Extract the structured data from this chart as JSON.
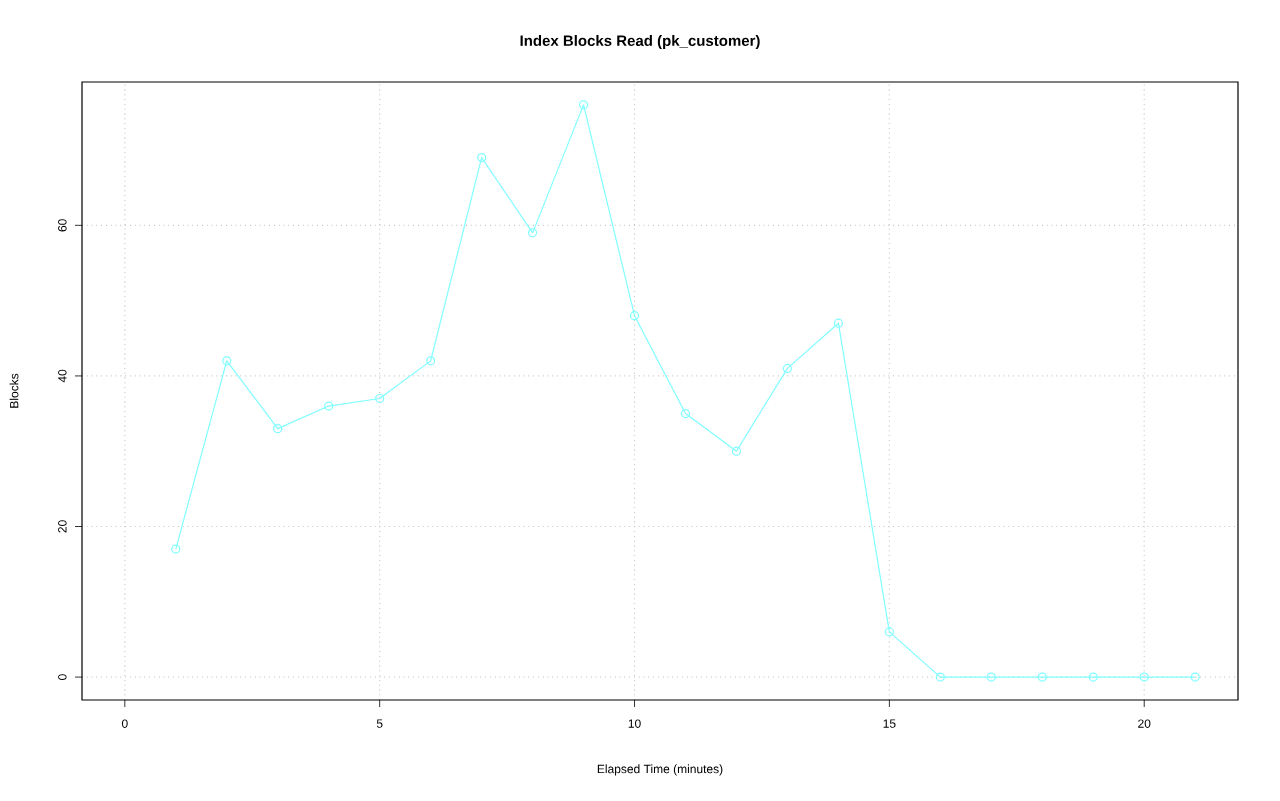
{
  "chart_data": {
    "type": "line",
    "title": "Index Blocks Read (pk_customer)",
    "xlabel": "Elapsed Time (minutes)",
    "ylabel": "Blocks",
    "x": [
      1,
      2,
      3,
      4,
      5,
      6,
      7,
      8,
      9,
      10,
      11,
      12,
      13,
      14,
      15,
      16,
      17,
      18,
      19,
      20,
      21
    ],
    "series": [
      {
        "color": "#80ffff",
        "values": [
          17,
          42,
          33,
          36,
          37,
          42,
          69,
          59,
          76,
          48,
          35,
          30,
          41,
          47,
          6,
          0,
          0,
          0,
          0,
          0,
          0
        ]
      }
    ],
    "xlim": [
      -0.84,
      21.84
    ],
    "ylim": [
      -3.04,
      79.04
    ],
    "xticks": [
      0,
      5,
      10,
      15,
      20
    ],
    "yticks": [
      0,
      20,
      40,
      60
    ],
    "grid": true,
    "marker": "circle",
    "line_style": "solid"
  }
}
